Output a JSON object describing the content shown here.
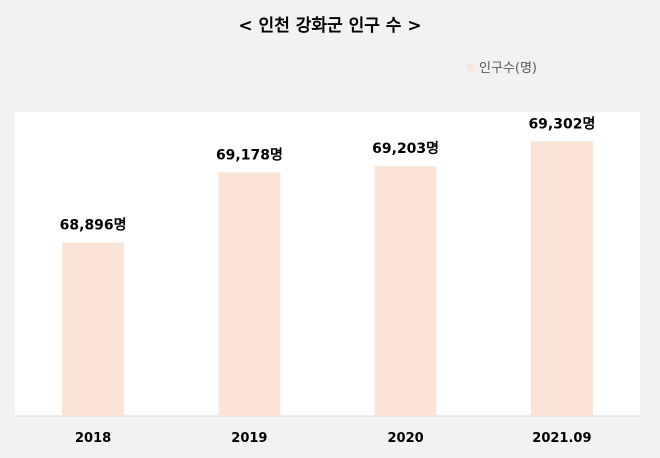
{
  "chart_data": {
    "type": "bar",
    "title": "< 인천 강화군 인구 수 >",
    "categories": [
      "2018",
      "2019",
      "2020",
      "2021.09"
    ],
    "series": [
      {
        "name": "인구수(명)",
        "values": [
          68896,
          69178,
          69203,
          69302
        ],
        "labels": [
          "68,896명",
          "69,178명",
          "69,203명",
          "69,302명"
        ],
        "color": "#fae4d6"
      }
    ],
    "ylim": [
      68200,
      69420
    ],
    "xlabel": "",
    "ylabel": "",
    "grid": false,
    "legend": "top-right"
  }
}
